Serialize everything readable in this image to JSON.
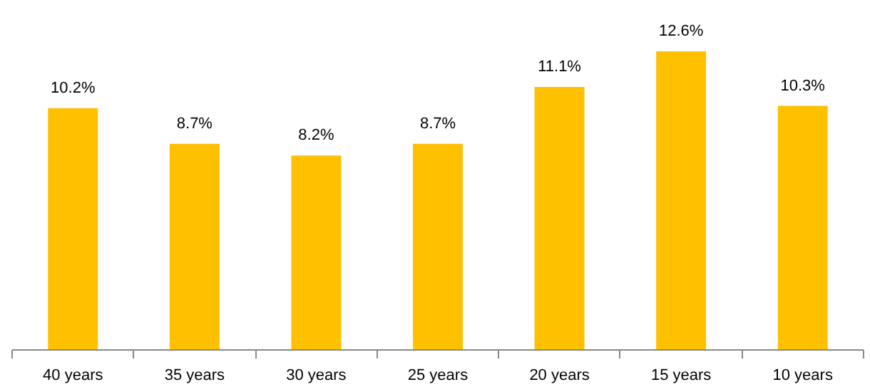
{
  "chart_data": {
    "type": "bar",
    "categories": [
      "40 years",
      "35 years",
      "30 years",
      "25 years",
      "20 years",
      "15 years",
      "10 years"
    ],
    "values": [
      10.2,
      8.7,
      8.2,
      8.7,
      11.1,
      12.6,
      10.3
    ],
    "value_labels": [
      "10.2%",
      "8.7%",
      "8.2%",
      "8.7%",
      "11.1%",
      "12.6%",
      "10.3%"
    ],
    "color": "#ffc000",
    "grid": false,
    "tick_labels": "x"
  }
}
